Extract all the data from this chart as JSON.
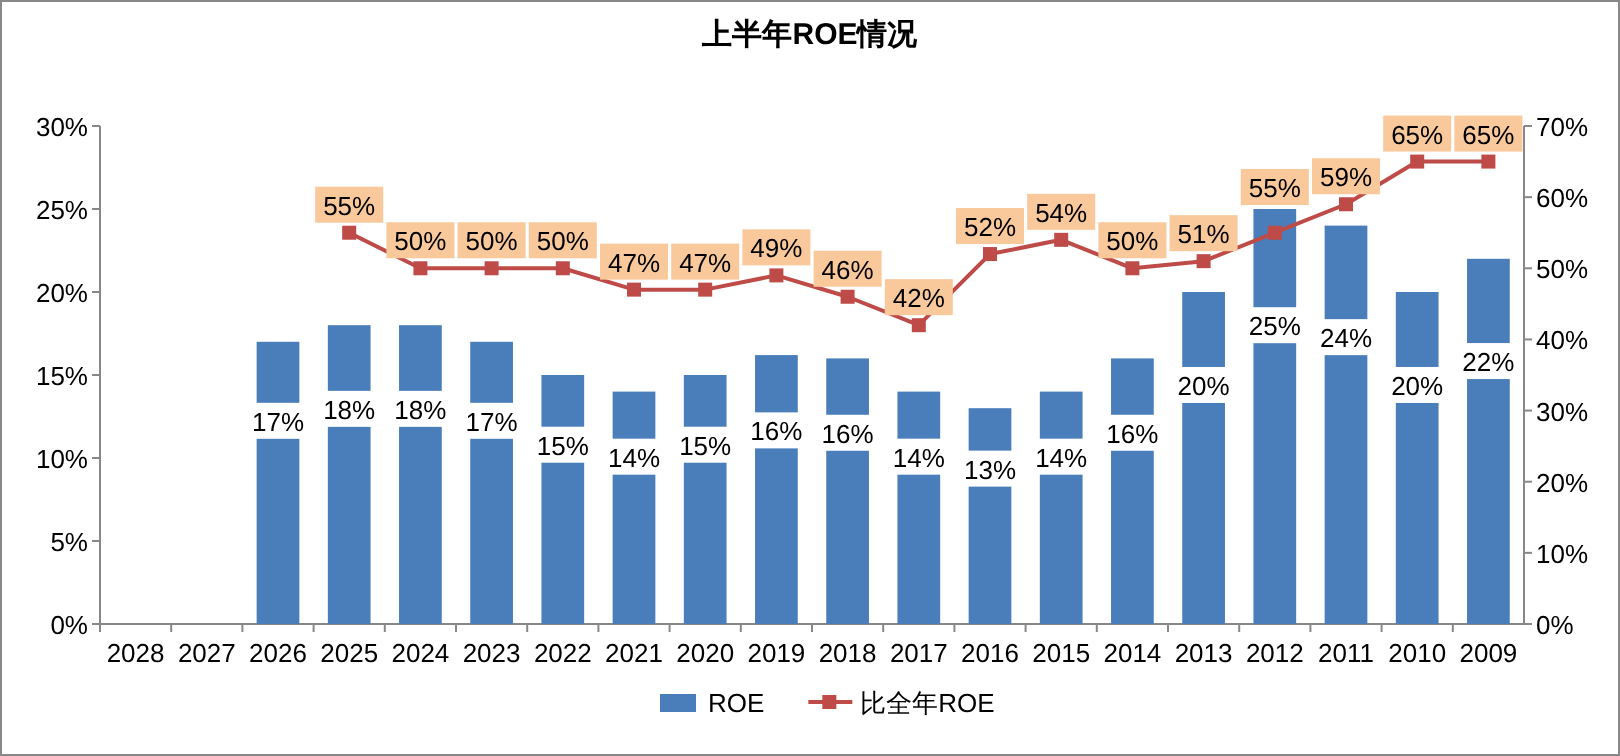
{
  "chart_data": {
    "type": "bar",
    "title": "上半年ROE情况",
    "categories": [
      "2028",
      "2027",
      "2026",
      "2025",
      "2024",
      "2023",
      "2022",
      "2021",
      "2020",
      "2019",
      "2018",
      "2017",
      "2016",
      "2015",
      "2014",
      "2013",
      "2012",
      "2011",
      "2010",
      "2009"
    ],
    "series": [
      {
        "name": "ROE",
        "color": "#4a7ebb",
        "values": [
          null,
          null,
          17,
          18,
          18,
          17,
          15,
          14,
          15,
          16.2,
          16,
          14,
          13,
          14,
          16,
          20,
          25,
          24,
          20,
          22
        ],
        "value_labels": [
          null,
          null,
          "17%",
          "18%",
          "18%",
          "17%",
          "15%",
          "14%",
          "15%",
          "16%",
          "16%",
          "14%",
          "13%",
          "14%",
          "16%",
          "20%",
          "25%",
          "24%",
          "20%",
          "22%"
        ]
      },
      {
        "name": "比全年ROE",
        "type": "line",
        "axis": "y2",
        "color": "#be4b48",
        "marker": "square",
        "values": [
          null,
          null,
          null,
          55,
          50,
          50,
          50,
          47,
          47,
          49,
          46,
          42,
          52,
          54,
          50,
          51,
          55,
          59,
          65,
          65
        ],
        "value_labels": [
          null,
          null,
          null,
          "55%",
          "50%",
          "50%",
          "50%",
          "47%",
          "47%",
          "49%",
          "46%",
          "42%",
          "52%",
          "54%",
          "50%",
          "51%",
          "55%",
          "59%",
          "65%",
          "65%"
        ]
      }
    ],
    "ylim": [
      0,
      30
    ],
    "yticks": [
      {
        "value": 0,
        "label": "0%"
      },
      {
        "value": 5,
        "label": "5%"
      },
      {
        "value": 10,
        "label": "10%"
      },
      {
        "value": 15,
        "label": "15%"
      },
      {
        "value": 20,
        "label": "20%"
      },
      {
        "value": 25,
        "label": "25%"
      },
      {
        "value": 30,
        "label": "30%"
      }
    ],
    "y2lim": [
      0,
      70
    ],
    "y2ticks": [
      {
        "value": 0,
        "label": "0%"
      },
      {
        "value": 10,
        "label": "10%"
      },
      {
        "value": 20,
        "label": "20%"
      },
      {
        "value": 30,
        "label": "30%"
      },
      {
        "value": 40,
        "label": "40%"
      },
      {
        "value": 50,
        "label": "50%"
      },
      {
        "value": 60,
        "label": "60%"
      },
      {
        "value": 70,
        "label": "70%"
      }
    ],
    "legend": "bottom",
    "grid": false
  }
}
